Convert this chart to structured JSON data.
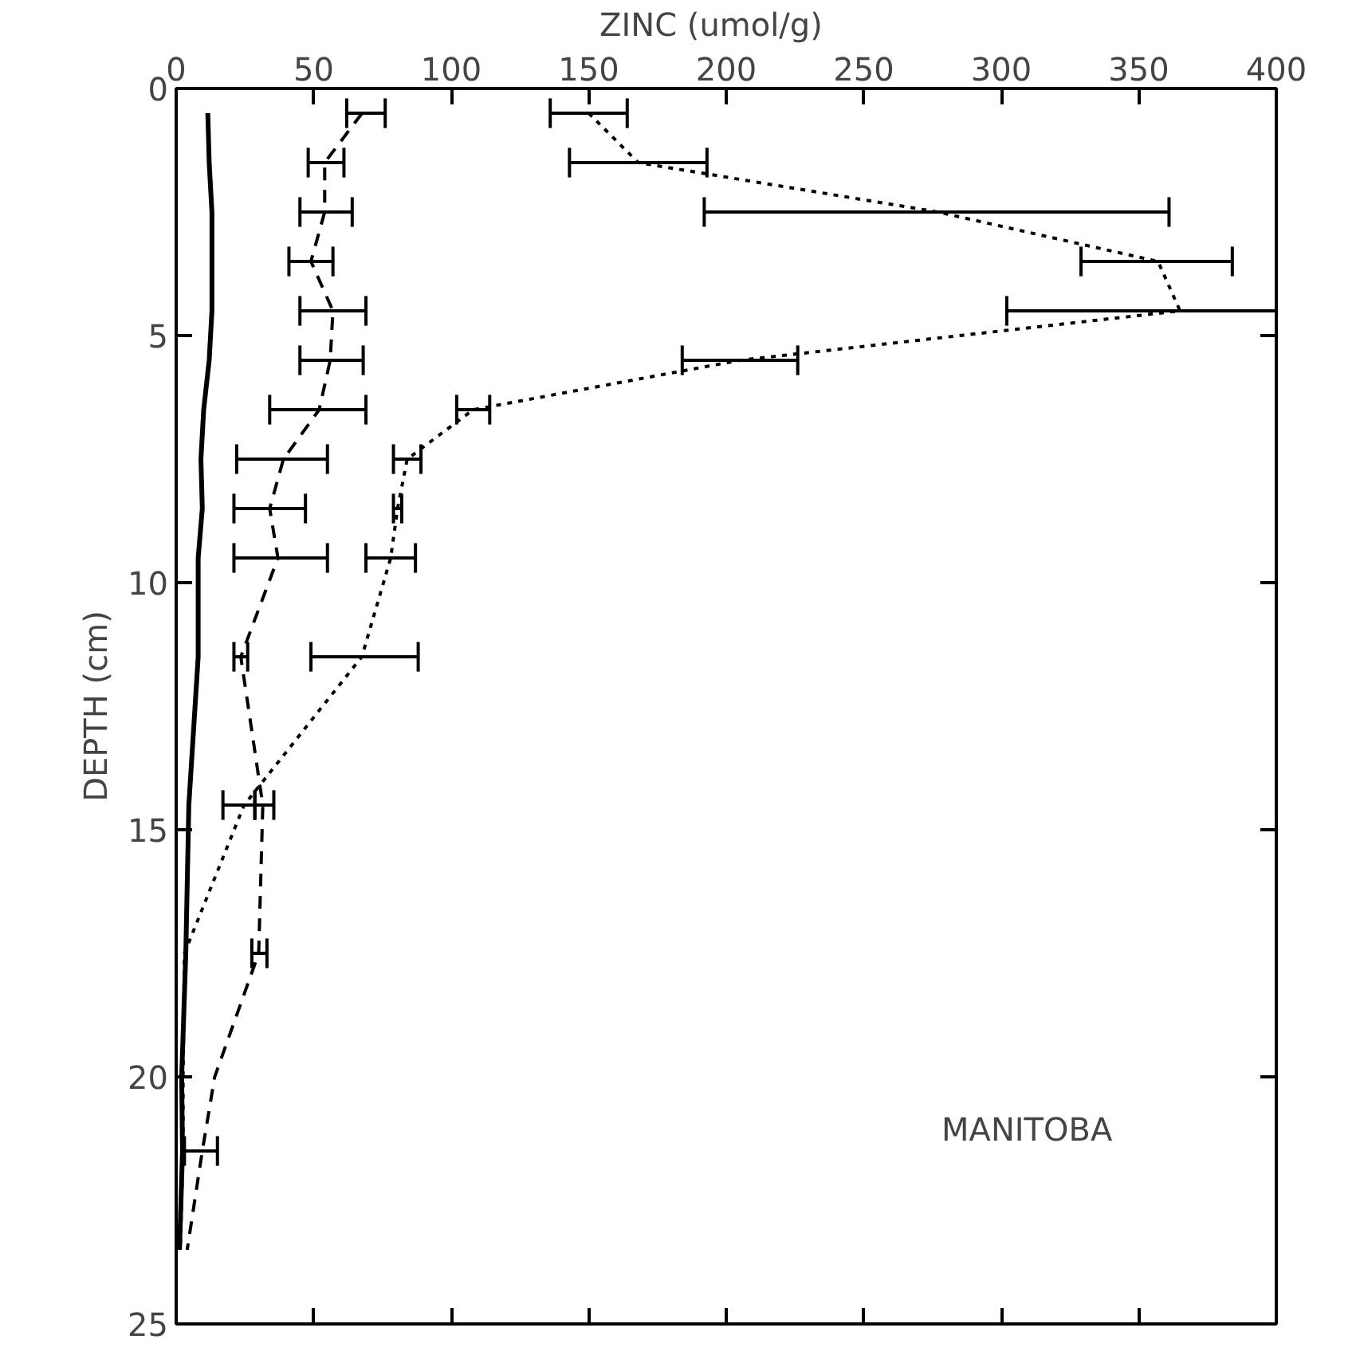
{
  "chart_data": {
    "type": "line",
    "xlabel": "ZINC    (umol/g)",
    "ylabel": "DEPTH (cm)",
    "xlim": [
      0,
      400
    ],
    "xticks": [
      0,
      50,
      100,
      150,
      200,
      250,
      300,
      350,
      400
    ],
    "ylim": [
      25,
      0
    ],
    "yticks": [
      0,
      5,
      10,
      15,
      20,
      25
    ],
    "annotations": [
      "MANITOBA"
    ],
    "series": [
      {
        "color": "#000000",
        "line_style": "solid",
        "x": [
          11.5,
          12,
          13,
          13,
          13,
          12,
          10,
          9,
          9.5,
          8,
          8,
          4.6,
          3.5,
          2,
          2.3,
          1.2
        ],
        "values": [
          0.5,
          1.5,
          2.5,
          3.5,
          4.5,
          5.5,
          6.5,
          7.5,
          8.5,
          9.5,
          11.5,
          14.5,
          17.5,
          20,
          21.5,
          23.5
        ]
      },
      {
        "color": "#000000",
        "line_style": "dashed",
        "x": [
          67.6,
          54,
          54,
          49,
          57,
          56,
          52,
          39,
          34,
          37,
          23.5,
          31.5,
          30,
          14,
          9.5,
          4
        ],
        "values": [
          0.5,
          1.5,
          2.5,
          3.5,
          4.5,
          5.5,
          6.5,
          7.5,
          8.5,
          9.5,
          11.5,
          14.5,
          17.5,
          20,
          21.5,
          23.5
        ],
        "xerrors": [
          [
            62,
            76
          ],
          [
            48,
            61
          ],
          [
            45,
            64
          ],
          [
            41,
            57
          ],
          [
            45,
            69
          ],
          [
            45,
            68
          ],
          [
            34,
            69
          ],
          [
            22,
            55
          ],
          [
            21,
            47
          ],
          [
            21,
            55
          ],
          [
            21,
            26
          ],
          [
            28.6,
            35.5
          ],
          [
            27.5,
            33
          ],
          null,
          [
            3,
            15
          ],
          null
        ]
      },
      {
        "color": "#000000",
        "line_style": "dotted",
        "x": [
          150,
          168,
          277,
          357,
          365,
          205,
          108,
          84,
          80.5,
          78,
          67.5,
          24.7,
          3,
          2.5,
          2.5,
          1.5
        ],
        "values": [
          0.5,
          1.5,
          2.5,
          3.5,
          4.5,
          5.5,
          6.5,
          7.5,
          8.5,
          9.5,
          11.5,
          14.5,
          17.5,
          20,
          21.5,
          23.5
        ],
        "xerrors": [
          [
            136,
            164
          ],
          [
            143,
            193
          ],
          [
            192,
            361
          ],
          [
            329,
            384
          ],
          [
            302,
            400
          ],
          [
            184,
            226
          ],
          [
            102,
            114
          ],
          [
            79,
            89
          ],
          [
            79,
            82
          ],
          [
            69,
            87
          ],
          [
            49,
            88
          ],
          [
            17,
            28.6
          ],
          null,
          null,
          null,
          null
        ]
      }
    ]
  }
}
